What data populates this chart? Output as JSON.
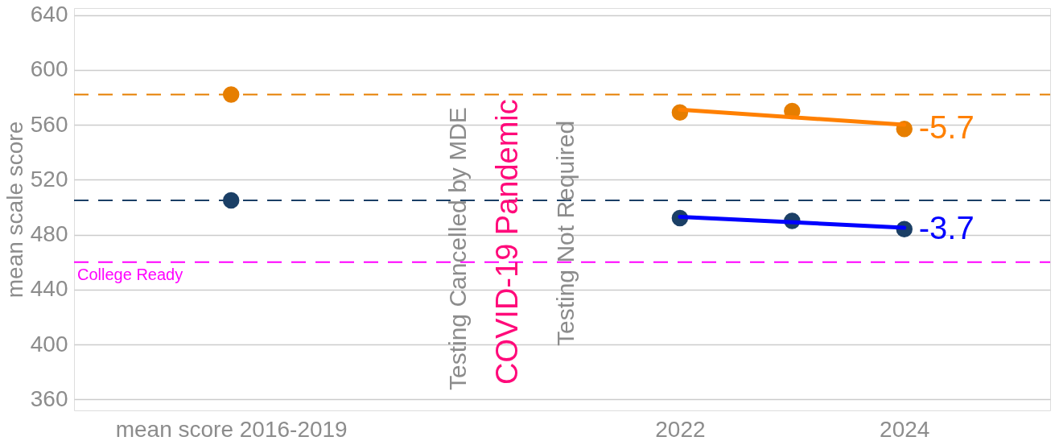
{
  "chart_data": {
    "type": "scatter",
    "ylabel": "mean scale score",
    "xlim": [
      2016.6,
      2025.3
    ],
    "ylim": [
      352,
      645
    ],
    "xticks": [
      {
        "value": 2018,
        "label": "mean score 2016-2019"
      },
      2022,
      2024
    ],
    "yticks": [
      360,
      400,
      440,
      480,
      520,
      560,
      600,
      640
    ],
    "grid": "y",
    "series": [
      {
        "type": "scatter",
        "color": "#e67e00",
        "x": [
          2018,
          2022,
          2023,
          2024
        ],
        "values": [
          582,
          569,
          570,
          557
        ]
      },
      {
        "type": "scatter",
        "color": "#1b3f66",
        "x": [
          2018,
          2022,
          2023,
          2024
        ],
        "values": [
          505,
          492,
          490,
          484
        ]
      },
      {
        "type": "line",
        "color": "#ff8000",
        "x": [
          2022,
          2024
        ],
        "values": [
          571,
          560
        ]
      },
      {
        "type": "line",
        "color": "#0000ff",
        "x": [
          2022,
          2024
        ],
        "values": [
          493,
          485
        ]
      }
    ],
    "ref_lines": [
      {
        "axis": "y",
        "value": 582,
        "color": "#e67e00",
        "line_style": "dashed"
      },
      {
        "axis": "y",
        "value": 505,
        "color": "#1b3f66",
        "line_style": "dashed"
      },
      {
        "axis": "y",
        "value": 460,
        "color": "#ff00ff",
        "line_style": "dashed",
        "label": "College Ready"
      }
    ],
    "annotations": [
      "Testing Cancelled by MDE",
      "COVID-19 Pandemic",
      "Testing Not Required",
      {
        "text": "-5.7",
        "x": 2024,
        "y": 557
      },
      {
        "text": "-3.7",
        "x": 2024,
        "y": 484
      }
    ]
  }
}
